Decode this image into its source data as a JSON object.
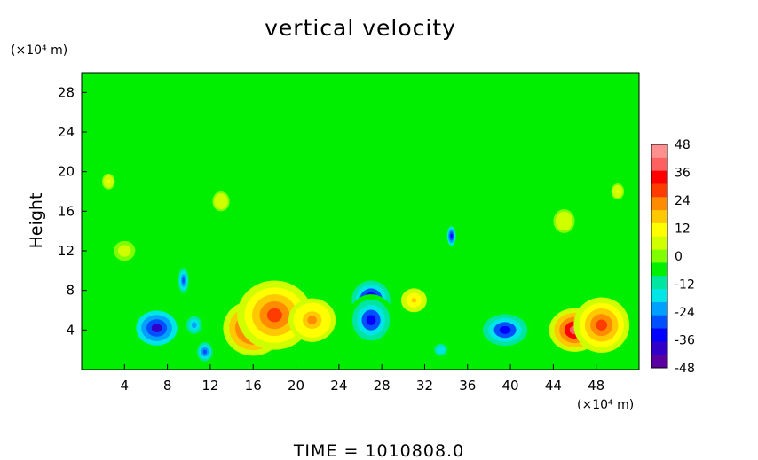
{
  "chart_data": {
    "type": "heatmap",
    "title": "vertical velocity",
    "ylabel": "Height",
    "xlabel": "",
    "x_unit": "(×10⁴ m)",
    "y_unit": "(×10⁴ m)",
    "xlim": [
      0,
      52
    ],
    "ylim": [
      0,
      30
    ],
    "x_ticks": [
      4,
      8,
      12,
      16,
      20,
      24,
      28,
      32,
      36,
      40,
      44,
      48
    ],
    "y_ticks": [
      4,
      8,
      12,
      16,
      20,
      24,
      28
    ],
    "colorbar": {
      "range": [
        -48,
        48
      ],
      "ticks": [
        48,
        36,
        24,
        12,
        0,
        -12,
        -24,
        -36,
        -48
      ],
      "colors": [
        "#5a00a0",
        "#3000c8",
        "#0000ff",
        "#0050ff",
        "#00a0ff",
        "#00e6e6",
        "#00e6a0",
        "#00f000",
        "#80ff00",
        "#d0ff00",
        "#ffff00",
        "#ffc800",
        "#ff8c00",
        "#ff3c00",
        "#ff0000",
        "#ff6060",
        "#ff9090"
      ]
    },
    "background_value": 0,
    "features": [
      {
        "x": 7,
        "y": 4.2,
        "value": -38,
        "rx": 2.4,
        "ry": 2.2
      },
      {
        "x": 9.5,
        "y": 9,
        "value": -30,
        "rx": 0.6,
        "ry": 1.6
      },
      {
        "x": 11.5,
        "y": 1.8,
        "value": -30,
        "rx": 0.9,
        "ry": 1.2
      },
      {
        "x": 10.5,
        "y": 4.5,
        "value": -20,
        "rx": 1.2,
        "ry": 1.5
      },
      {
        "x": 16,
        "y": 4.2,
        "value": 42,
        "rx": 2.8,
        "ry": 2.8
      },
      {
        "x": 18,
        "y": 5.5,
        "value": 30,
        "rx": 3.5,
        "ry": 3.5
      },
      {
        "x": 21.5,
        "y": 5.0,
        "value": 22,
        "rx": 2.2,
        "ry": 2.2
      },
      {
        "x": 27,
        "y": 7.0,
        "value": -44,
        "rx": 1.8,
        "ry": 2.0
      },
      {
        "x": 27,
        "y": 5.0,
        "value": -32,
        "rx": 2.2,
        "ry": 2.6
      },
      {
        "x": 34.5,
        "y": 13.5,
        "value": -36,
        "rx": 0.5,
        "ry": 1.2
      },
      {
        "x": 33.5,
        "y": 2.0,
        "value": -18,
        "rx": 1.0,
        "ry": 1.0
      },
      {
        "x": 39.5,
        "y": 4.0,
        "value": -32,
        "rx": 2.6,
        "ry": 2.0
      },
      {
        "x": 46,
        "y": 4.0,
        "value": 40,
        "rx": 2.4,
        "ry": 2.2
      },
      {
        "x": 48.5,
        "y": 4.5,
        "value": 28,
        "rx": 2.6,
        "ry": 2.8
      },
      {
        "x": 31,
        "y": 7.0,
        "value": 16,
        "rx": 1.2,
        "ry": 1.2
      },
      {
        "x": 4,
        "y": 12,
        "value": 6,
        "rx": 1.0,
        "ry": 1.0
      },
      {
        "x": 2.5,
        "y": 19,
        "value": 10,
        "rx": 0.6,
        "ry": 0.8
      },
      {
        "x": 13,
        "y": 17,
        "value": 8,
        "rx": 0.8,
        "ry": 1.0
      },
      {
        "x": 45,
        "y": 15,
        "value": 8,
        "rx": 1.0,
        "ry": 1.2
      },
      {
        "x": 50,
        "y": 18,
        "value": 10,
        "rx": 0.6,
        "ry": 0.8
      }
    ]
  },
  "footer": {
    "time_label": "TIME  =  1010808.0"
  }
}
